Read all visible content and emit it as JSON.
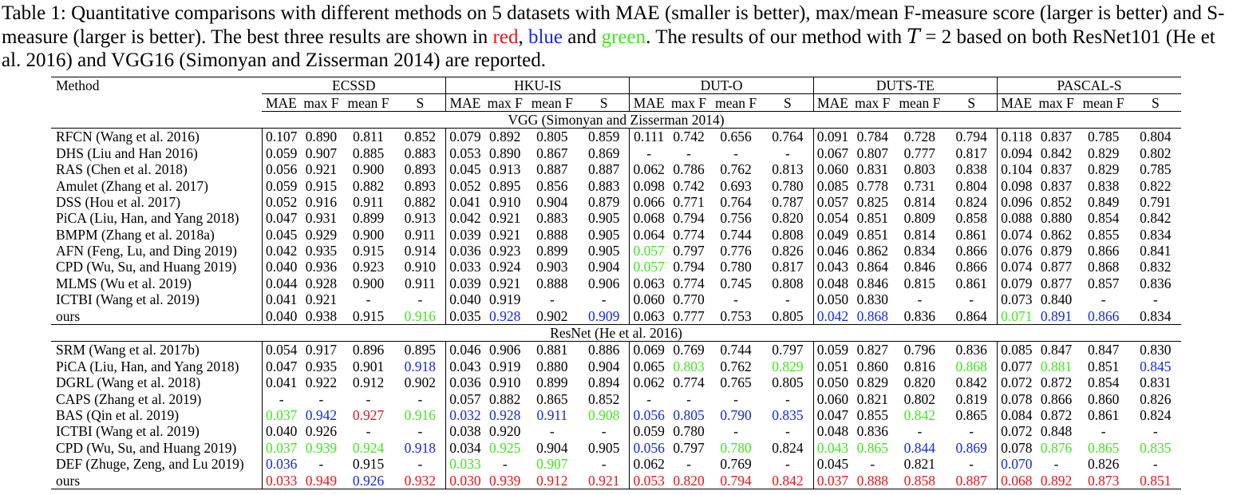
{
  "caption": {
    "label": "Table 1:",
    "part1": " Quantitative comparisons with different methods on 5 datasets with MAE (smaller is better), max/mean F-measure score (larger is better) and S-measure (larger is better). The best three results are shown in ",
    "red_word": "red",
    "sep1": ", ",
    "blue_word": "blue",
    "sep2": " and ",
    "green_word": "green",
    "part2": ". The results of our method with ",
    "math_T": "T",
    "math_eq": " = 2",
    "part3": " based on both ResNet101 (He et al. 2016) and VGG16 (Simonyan and Zisserman 2014) are reported."
  },
  "colors": {
    "red": "#e8151b",
    "blue": "#1527e8",
    "green": "#3ee81b"
  },
  "table": {
    "method_header": "Method",
    "datasets": [
      "ECSSD",
      "HKU-IS",
      "DUT-O",
      "DUTS-TE",
      "PASCAL-S"
    ],
    "metrics": [
      "MAE",
      "max F",
      "mean F",
      "S"
    ],
    "groups": [
      {
        "title": "VGG (Simonyan and Zisserman 2014)",
        "rows": [
          {
            "method": "RFCN (Wang et al. 2016)",
            "values": [
              "0.107",
              "0.890",
              "0.811",
              "0.852",
              "0.079",
              "0.892",
              "0.805",
              "0.859",
              "0.111",
              "0.742",
              "0.656",
              "0.764",
              "0.091",
              "0.784",
              "0.728",
              "0.794",
              "0.118",
              "0.837",
              "0.785",
              "0.804"
            ],
            "colors": {}
          },
          {
            "method": "DHS (Liu and Han 2016)",
            "values": [
              "0.059",
              "0.907",
              "0.885",
              "0.883",
              "0.053",
              "0.890",
              "0.867",
              "0.869",
              "-",
              "-",
              "-",
              "-",
              "0.067",
              "0.807",
              "0.777",
              "0.817",
              "0.094",
              "0.842",
              "0.829",
              "0.802"
            ],
            "colors": {}
          },
          {
            "method": "RAS (Chen et al. 2018)",
            "values": [
              "0.056",
              "0.921",
              "0.900",
              "0.893",
              "0.045",
              "0.913",
              "0.887",
              "0.887",
              "0.062",
              "0.786",
              "0.762",
              "0.813",
              "0.060",
              "0.831",
              "0.803",
              "0.838",
              "0.104",
              "0.837",
              "0.829",
              "0.785"
            ],
            "colors": {}
          },
          {
            "method": "Amulet (Zhang et al. 2017)",
            "values": [
              "0.059",
              "0.915",
              "0.882",
              "0.893",
              "0.052",
              "0.895",
              "0.856",
              "0.883",
              "0.098",
              "0.742",
              "0.693",
              "0.780",
              "0.085",
              "0.778",
              "0.731",
              "0.804",
              "0.098",
              "0.837",
              "0.838",
              "0.822"
            ],
            "colors": {}
          },
          {
            "method": "DSS (Hou et al. 2017)",
            "values": [
              "0.052",
              "0.916",
              "0.911",
              "0.882",
              "0.041",
              "0.910",
              "0.904",
              "0.879",
              "0.066",
              "0.771",
              "0.764",
              "0.787",
              "0.057",
              "0.825",
              "0.814",
              "0.824",
              "0.096",
              "0.852",
              "0.849",
              "0.791"
            ],
            "colors": {}
          },
          {
            "method": "PiCA (Liu, Han, and Yang 2018)",
            "values": [
              "0.047",
              "0.931",
              "0.899",
              "0.913",
              "0.042",
              "0.921",
              "0.883",
              "0.905",
              "0.068",
              "0.794",
              "0.756",
              "0.820",
              "0.054",
              "0.851",
              "0.809",
              "0.858",
              "0.088",
              "0.880",
              "0.854",
              "0.842"
            ],
            "colors": {}
          },
          {
            "method": "BMPM (Zhang et al. 2018a)",
            "values": [
              "0.045",
              "0.929",
              "0.900",
              "0.911",
              "0.039",
              "0.921",
              "0.888",
              "0.905",
              "0.064",
              "0.774",
              "0.744",
              "0.808",
              "0.049",
              "0.851",
              "0.814",
              "0.861",
              "0.074",
              "0.862",
              "0.855",
              "0.834"
            ],
            "colors": {}
          },
          {
            "method": "AFN (Feng, Lu, and Ding 2019)",
            "values": [
              "0.042",
              "0.935",
              "0.915",
              "0.914",
              "0.036",
              "0.923",
              "0.899",
              "0.905",
              "0.057",
              "0.797",
              "0.776",
              "0.826",
              "0.046",
              "0.862",
              "0.834",
              "0.866",
              "0.076",
              "0.879",
              "0.866",
              "0.841"
            ],
            "colors": {
              "8": "green"
            }
          },
          {
            "method": "CPD (Wu, Su, and Huang 2019)",
            "values": [
              "0.040",
              "0.936",
              "0.923",
              "0.910",
              "0.033",
              "0.924",
              "0.903",
              "0.904",
              "0.057",
              "0.794",
              "0.780",
              "0.817",
              "0.043",
              "0.864",
              "0.846",
              "0.866",
              "0.074",
              "0.877",
              "0.868",
              "0.832"
            ],
            "colors": {
              "8": "green"
            }
          },
          {
            "method": "MLMS (Wu et al. 2019)",
            "values": [
              "0.044",
              "0.928",
              "0.900",
              "0.911",
              "0.039",
              "0.921",
              "0.888",
              "0.906",
              "0.063",
              "0.774",
              "0.745",
              "0.808",
              "0.048",
              "0.846",
              "0.815",
              "0.861",
              "0.079",
              "0.877",
              "0.857",
              "0.836"
            ],
            "colors": {}
          },
          {
            "method": "ICTBI (Wang et al. 2019)",
            "values": [
              "0.041",
              "0.921",
              "-",
              "-",
              "0.040",
              "0.919",
              "-",
              "-",
              "0.060",
              "0.770",
              "-",
              "-",
              "0.050",
              "0.830",
              "-",
              "-",
              "0.073",
              "0.840",
              "-",
              "-"
            ],
            "colors": {}
          },
          {
            "method": "ours",
            "values": [
              "0.040",
              "0.938",
              "0.915",
              "0.916",
              "0.035",
              "0.928",
              "0.902",
              "0.909",
              "0.063",
              "0.777",
              "0.753",
              "0.805",
              "0.042",
              "0.868",
              "0.836",
              "0.864",
              "0.071",
              "0.891",
              "0.866",
              "0.834"
            ],
            "colors": {
              "3": "green",
              "5": "blue",
              "7": "blue",
              "12": "blue",
              "13": "blue",
              "16": "green",
              "17": "blue",
              "18": "blue"
            }
          }
        ]
      },
      {
        "title": "ResNet (He et al. 2016)",
        "rows": [
          {
            "method": "SRM (Wang et al. 2017b)",
            "values": [
              "0.054",
              "0.917",
              "0.896",
              "0.895",
              "0.046",
              "0.906",
              "0.881",
              "0.886",
              "0.069",
              "0.769",
              "0.744",
              "0.797",
              "0.059",
              "0.827",
              "0.796",
              "0.836",
              "0.085",
              "0.847",
              "0.847",
              "0.830"
            ],
            "colors": {}
          },
          {
            "method": "PiCA (Liu, Han, and Yang 2018)",
            "values": [
              "0.047",
              "0.935",
              "0.901",
              "0.918",
              "0.043",
              "0.919",
              "0.880",
              "0.904",
              "0.065",
              "0.803",
              "0.762",
              "0.829",
              "0.051",
              "0.860",
              "0.816",
              "0.868",
              "0.077",
              "0.881",
              "0.851",
              "0.845"
            ],
            "colors": {
              "3": "blue",
              "9": "green",
              "11": "green",
              "15": "green",
              "17": "green",
              "19": "blue"
            }
          },
          {
            "method": "DGRL (Wang et al. 2018)",
            "values": [
              "0.041",
              "0.922",
              "0.912",
              "0.902",
              "0.036",
              "0.910",
              "0.899",
              "0.894",
              "0.062",
              "0.774",
              "0.765",
              "0.805",
              "0.050",
              "0.829",
              "0.820",
              "0.842",
              "0.072",
              "0.872",
              "0.854",
              "0.831"
            ],
            "colors": {}
          },
          {
            "method": "CAPS (Zhang et al. 2019)",
            "values": [
              "-",
              "-",
              "-",
              "-",
              "0.057",
              "0.882",
              "0.865",
              "0.852",
              "-",
              "-",
              "-",
              "-",
              "0.060",
              "0.821",
              "0.802",
              "0.819",
              "0.078",
              "0.866",
              "0.860",
              "0.826"
            ],
            "colors": {}
          },
          {
            "method": "BAS (Qin et al. 2019)",
            "values": [
              "0.037",
              "0.942",
              "0.927",
              "0.916",
              "0.032",
              "0.928",
              "0.911",
              "0.908",
              "0.056",
              "0.805",
              "0.790",
              "0.835",
              "0.047",
              "0.855",
              "0.842",
              "0.865",
              "0.084",
              "0.872",
              "0.861",
              "0.824"
            ],
            "colors": {
              "0": "green",
              "1": "blue",
              "2": "red",
              "3": "green",
              "4": "blue",
              "5": "blue",
              "6": "blue",
              "7": "green",
              "8": "blue",
              "9": "blue",
              "10": "blue",
              "11": "blue",
              "14": "green"
            }
          },
          {
            "method": "ICTBI (Wang et al. 2019)",
            "values": [
              "0.040",
              "0.926",
              "-",
              "-",
              "0.038",
              "0.920",
              "-",
              "-",
              "0.059",
              "0.780",
              "-",
              "-",
              "0.048",
              "0.836",
              "-",
              "-",
              "0.072",
              "0.848",
              "-",
              "-"
            ],
            "colors": {}
          },
          {
            "method": "CPD (Wu, Su, and Huang 2019)",
            "values": [
              "0.037",
              "0.939",
              "0.924",
              "0.918",
              "0.034",
              "0.925",
              "0.904",
              "0.905",
              "0.056",
              "0.797",
              "0.780",
              "0.824",
              "0.043",
              "0.865",
              "0.844",
              "0.869",
              "0.078",
              "0.876",
              "0.865",
              "0.835"
            ],
            "colors": {
              "0": "green",
              "1": "green",
              "2": "green",
              "3": "blue",
              "5": "green",
              "8": "blue",
              "10": "green",
              "12": "green",
              "13": "green",
              "14": "blue",
              "15": "blue",
              "17": "green",
              "18": "green",
              "19": "green"
            }
          },
          {
            "method": "DEF (Zhuge, Zeng, and Lu 2019)",
            "values": [
              "0.036",
              "-",
              "0.915",
              "-",
              "0.033",
              "-",
              "0.907",
              "-",
              "0.062",
              "-",
              "0.769",
              "-",
              "0.045",
              "-",
              "0.821",
              "-",
              "0.070",
              "-",
              "0.826",
              "-"
            ],
            "colors": {
              "0": "blue",
              "4": "green",
              "6": "green",
              "16": "blue"
            }
          },
          {
            "method": "ours",
            "values": [
              "0.033",
              "0.949",
              "0.926",
              "0.932",
              "0.030",
              "0.939",
              "0.912",
              "0.921",
              "0.053",
              "0.820",
              "0.794",
              "0.842",
              "0.037",
              "0.888",
              "0.858",
              "0.887",
              "0.068",
              "0.892",
              "0.873",
              "0.851"
            ],
            "colors": {
              "0": "red",
              "1": "red",
              "2": "blue",
              "3": "red",
              "4": "red",
              "5": "red",
              "6": "red",
              "7": "red",
              "8": "red",
              "9": "red",
              "10": "red",
              "11": "red",
              "12": "red",
              "13": "red",
              "14": "red",
              "15": "red",
              "16": "red",
              "17": "red",
              "18": "red",
              "19": "red"
            }
          }
        ]
      }
    ]
  }
}
